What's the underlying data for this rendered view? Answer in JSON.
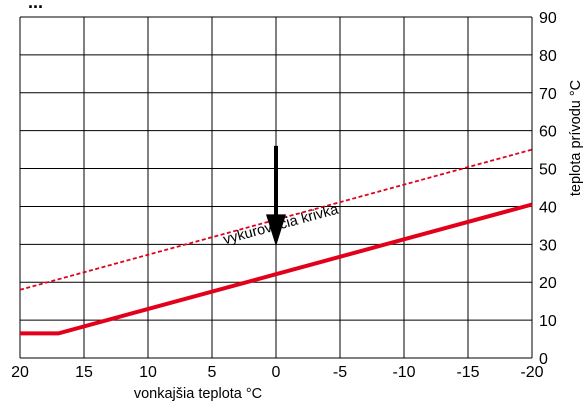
{
  "chart_data": {
    "type": "line",
    "title_fragment": "...",
    "xlabel": "vonkajšia teplota °C",
    "ylabel": "teplota prívodu °C",
    "x_ticks": [
      20,
      15,
      10,
      5,
      0,
      -5,
      -10,
      -15,
      -20
    ],
    "y_ticks": [
      0,
      10,
      20,
      30,
      40,
      50,
      60,
      70,
      80,
      90
    ],
    "xlim": [
      20,
      -20
    ],
    "ylim": [
      0,
      90
    ],
    "grid": true,
    "series": [
      {
        "style": "solid",
        "color": "#e3001b",
        "points": [
          [
            20,
            6.5
          ],
          [
            17,
            6.5
          ],
          [
            -20,
            40.5
          ]
        ]
      },
      {
        "style": "dashed",
        "color": "#e3001b",
        "points": [
          [
            20,
            18
          ],
          [
            -20,
            55
          ]
        ]
      }
    ],
    "annotations": [
      {
        "text": "vykurovacia krivka",
        "x": 4,
        "y": 30
      }
    ],
    "arrow": {
      "x": 0,
      "y_from": 56,
      "y_to": 30,
      "color": "#000000"
    }
  }
}
